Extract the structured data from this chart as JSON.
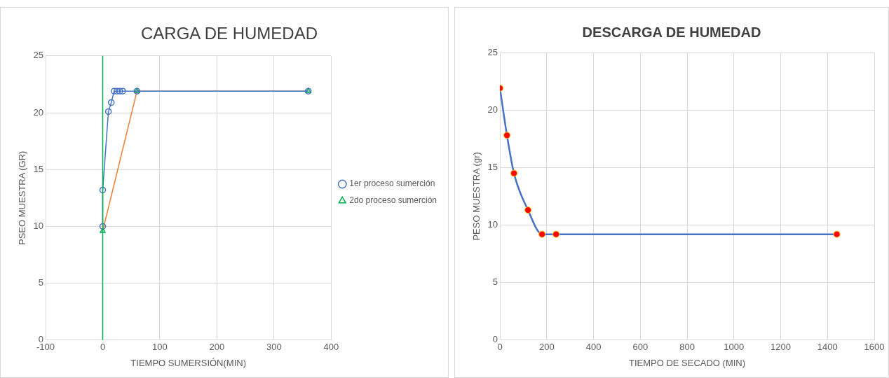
{
  "chart_data": [
    {
      "type": "line",
      "title": "CARGA DE HUMEDAD",
      "xlabel": "TIEMPO SUMERSIÓN(MIN)",
      "ylabel": "PSEO MUESTRA (GR)",
      "xlim": [
        -100,
        400
      ],
      "xticks": [
        -100,
        0,
        100,
        200,
        300,
        400
      ],
      "ylim": [
        0,
        25
      ],
      "yticks": [
        0,
        5,
        10,
        15,
        20,
        25
      ],
      "grid": true,
      "legend": "right",
      "ref_lines": [
        {
          "axis": "x",
          "value": 0,
          "color": "#00b050"
        }
      ],
      "series": [
        {
          "name": "1er proceso sumerción",
          "color": "#4472c4",
          "marker": "circle",
          "x": [
            0,
            0,
            10,
            15,
            20,
            25,
            30,
            35,
            60,
            360
          ],
          "values": [
            10,
            13.2,
            20.1,
            20.9,
            21.9,
            21.9,
            21.9,
            21.9,
            21.9,
            21.9
          ]
        },
        {
          "name": "2do proceso sumerción",
          "color": "#ed7d31",
          "colors": [
            "#00b050",
            "#00b050",
            "#00b050"
          ],
          "marker": "triangle",
          "x": [
            0,
            60,
            360
          ],
          "values": [
            9.6,
            21.9,
            21.9
          ]
        }
      ]
    },
    {
      "type": "line",
      "title": "DESCARGA DE HUMEDAD",
      "xlabel": "TIEMPO DE SECADO (MIN)",
      "ylabel": "PESO MUESTRA (gr)",
      "xlim": [
        0,
        1600
      ],
      "xticks": [
        0,
        200,
        400,
        600,
        800,
        1000,
        1200,
        1400,
        1600
      ],
      "ylim": [
        0,
        25
      ],
      "yticks": [
        0,
        5,
        10,
        15,
        20,
        25
      ],
      "grid": true,
      "marker": "circle",
      "series": [
        {
          "color": "#4472c4",
          "colors": [
            "#ff0000",
            "#ff0000",
            "#ff0000",
            "#ff0000",
            "#ff0000",
            "#ff0000",
            "#ff0000"
          ],
          "x": [
            0,
            30,
            60,
            120,
            180,
            240,
            1440
          ],
          "values": [
            21.9,
            17.8,
            14.5,
            11.3,
            9.2,
            9.2,
            9.2
          ]
        }
      ]
    }
  ]
}
